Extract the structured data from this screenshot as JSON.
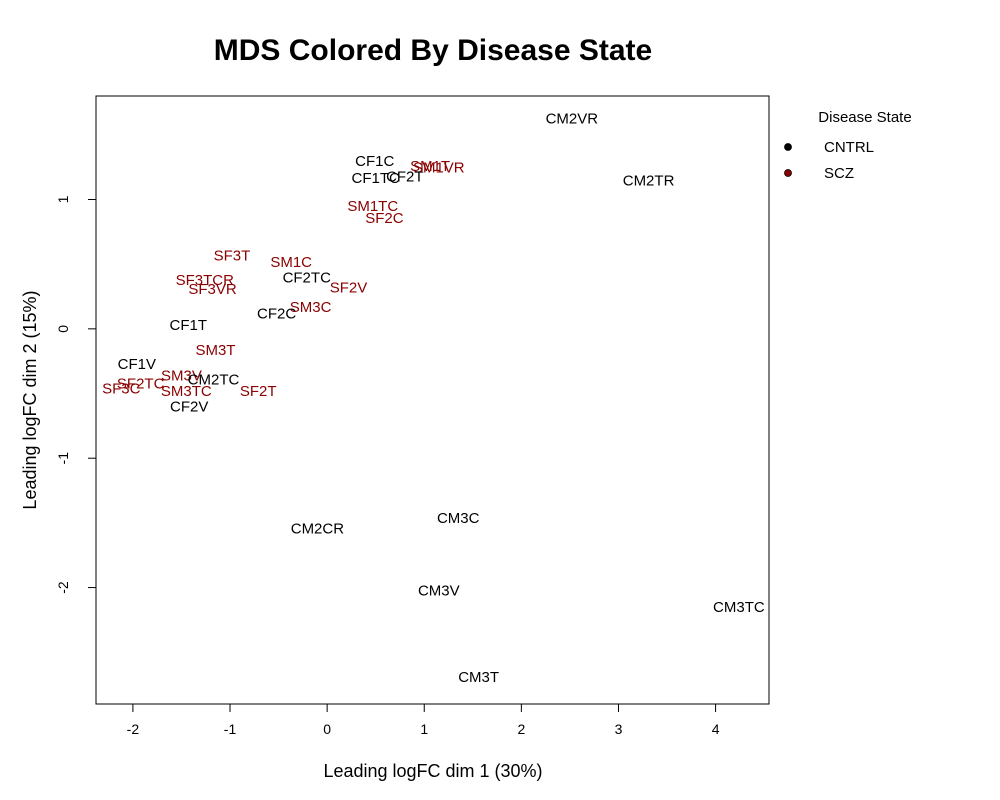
{
  "chart_data": {
    "type": "scatter",
    "title": "MDS Colored By Disease State",
    "xlabel": "Leading logFC dim 1 (30%)",
    "ylabel": "Leading logFC dim 2 (15%)",
    "xlim": [
      -2.38,
      4.55
    ],
    "ylim": [
      -2.9,
      1.8
    ],
    "x_ticks": [
      -2,
      -1,
      0,
      1,
      2,
      3,
      4
    ],
    "y_ticks": [
      -2,
      -1,
      0,
      1
    ],
    "legend": {
      "title": "Disease State",
      "position": "outside-right",
      "entries": [
        {
          "label": "CNTRL",
          "color": "#000000"
        },
        {
          "label": "SCZ",
          "color": "#8b0000"
        }
      ]
    },
    "group_colors": {
      "CNTRL": "#000000",
      "SCZ": "#8b0000"
    },
    "points": [
      {
        "label": "CM2VR",
        "x": 2.52,
        "y": 1.62,
        "group": "CNTRL"
      },
      {
        "label": "CF1C",
        "x": 0.49,
        "y": 1.29,
        "group": "CNTRL"
      },
      {
        "label": "SM1T",
        "x": 1.06,
        "y": 1.25,
        "group": "SCZ"
      },
      {
        "label": "SM1VR",
        "x": 1.15,
        "y": 1.24,
        "group": "SCZ"
      },
      {
        "label": "CF1TC",
        "x": 0.5,
        "y": 1.16,
        "group": "CNTRL"
      },
      {
        "label": "CF2T",
        "x": 0.8,
        "y": 1.17,
        "group": "CNTRL"
      },
      {
        "label": "CM2TR",
        "x": 3.31,
        "y": 1.14,
        "group": "CNTRL"
      },
      {
        "label": "SM1TC",
        "x": 0.47,
        "y": 0.94,
        "group": "SCZ"
      },
      {
        "label": "SF2C",
        "x": 0.59,
        "y": 0.85,
        "group": "SCZ"
      },
      {
        "label": "SF3T",
        "x": -0.98,
        "y": 0.56,
        "group": "SCZ"
      },
      {
        "label": "SM1C",
        "x": -0.37,
        "y": 0.51,
        "group": "SCZ"
      },
      {
        "label": "CF2TC",
        "x": -0.21,
        "y": 0.39,
        "group": "CNTRL"
      },
      {
        "label": "SF3TCR",
        "x": -1.26,
        "y": 0.37,
        "group": "SCZ"
      },
      {
        "label": "SF2V",
        "x": 0.22,
        "y": 0.31,
        "group": "SCZ"
      },
      {
        "label": "SF3VR",
        "x": -1.18,
        "y": 0.3,
        "group": "SCZ"
      },
      {
        "label": "SM3C",
        "x": -0.17,
        "y": 0.16,
        "group": "SCZ"
      },
      {
        "label": "CF2C",
        "x": -0.52,
        "y": 0.11,
        "group": "CNTRL"
      },
      {
        "label": "CF1T",
        "x": -1.43,
        "y": 0.02,
        "group": "CNTRL"
      },
      {
        "label": "SM3T",
        "x": -1.15,
        "y": -0.17,
        "group": "SCZ"
      },
      {
        "label": "CF1V",
        "x": -1.96,
        "y": -0.28,
        "group": "CNTRL"
      },
      {
        "label": "SM3V",
        "x": -1.5,
        "y": -0.37,
        "group": "SCZ"
      },
      {
        "label": "CM2TC",
        "x": -1.17,
        "y": -0.4,
        "group": "CNTRL"
      },
      {
        "label": "SF2TC",
        "x": -1.92,
        "y": -0.43,
        "group": "SCZ"
      },
      {
        "label": "SF3C",
        "x": -2.12,
        "y": -0.47,
        "group": "SCZ"
      },
      {
        "label": "SM3TC",
        "x": -1.45,
        "y": -0.49,
        "group": "SCZ"
      },
      {
        "label": "SF2T",
        "x": -0.71,
        "y": -0.49,
        "group": "SCZ"
      },
      {
        "label": "CF2V",
        "x": -1.42,
        "y": -0.61,
        "group": "CNTRL"
      },
      {
        "label": "CM3C",
        "x": 1.35,
        "y": -1.47,
        "group": "CNTRL"
      },
      {
        "label": "CM2CR",
        "x": -0.1,
        "y": -1.55,
        "group": "CNTRL"
      },
      {
        "label": "CM3V",
        "x": 1.15,
        "y": -2.03,
        "group": "CNTRL"
      },
      {
        "label": "CM3TC",
        "x": 4.24,
        "y": -2.16,
        "group": "CNTRL"
      },
      {
        "label": "CM3T",
        "x": 1.56,
        "y": -2.7,
        "group": "CNTRL"
      }
    ]
  }
}
